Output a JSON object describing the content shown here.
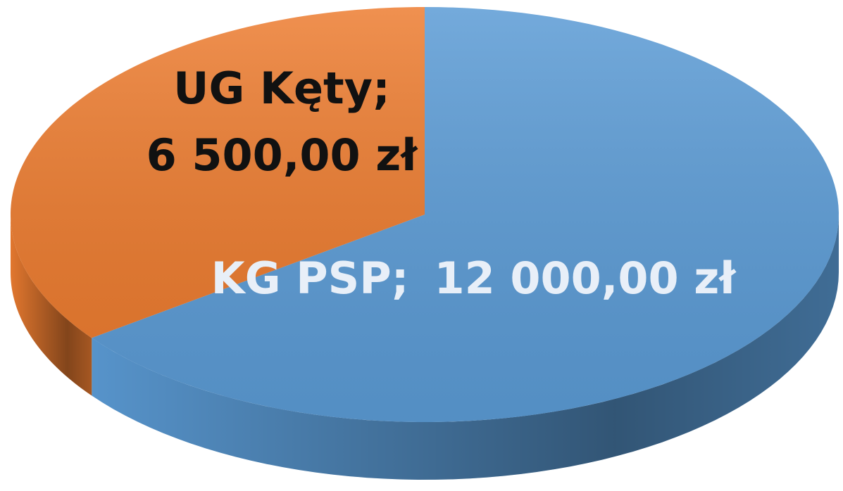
{
  "chart_data": {
    "type": "pie3d",
    "categories": [
      "KG PSP",
      "UG Kęty"
    ],
    "values": [
      12000,
      6500
    ],
    "value_labels": [
      "12 000,00 zł",
      "6 500,00 zł"
    ],
    "label_separator": ";",
    "colors": [
      "#5b9bd5",
      "#ed7d31"
    ],
    "label_colors": [
      "#e8eff8",
      "#111111"
    ]
  }
}
